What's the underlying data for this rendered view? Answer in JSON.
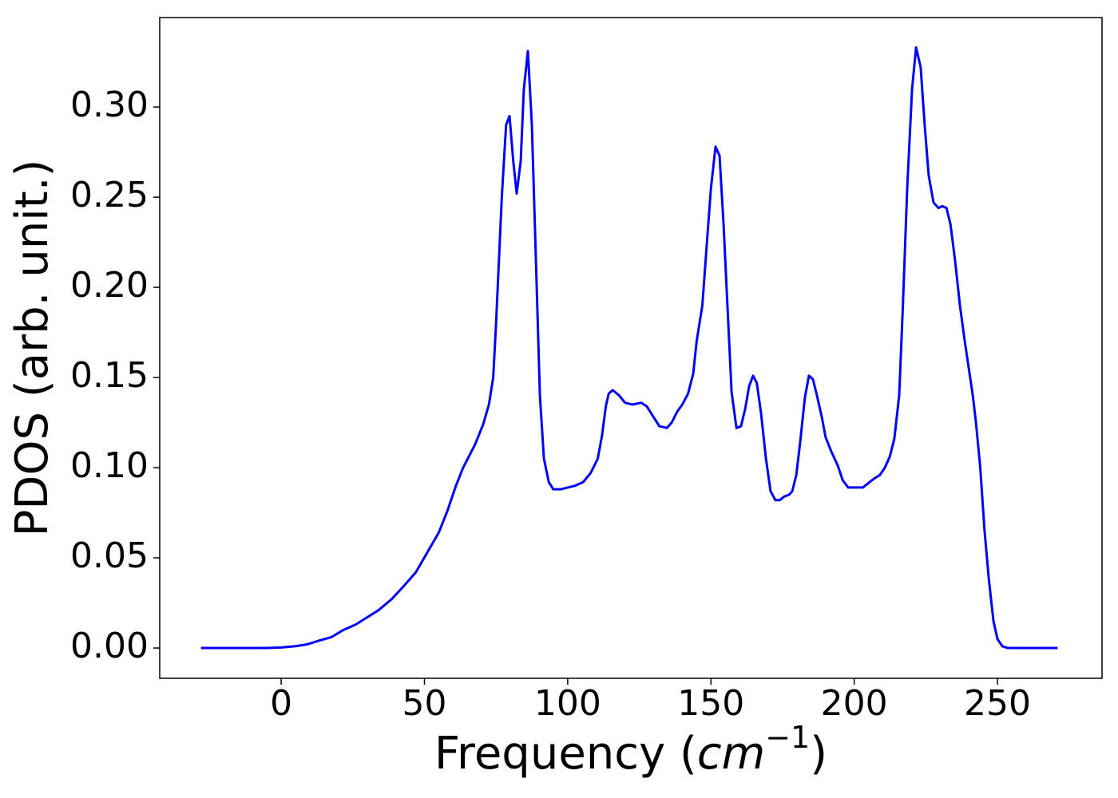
{
  "chart_data": {
    "type": "line",
    "ylabel": "PDOS (arb. unit.)",
    "xlabel": {
      "text": "Frequency (",
      "math": "cm",
      "sup": "−1",
      "close": ")"
    },
    "xlim": [
      -42.4,
      286.5
    ],
    "ylim": [
      -0.0168,
      0.3496
    ],
    "xticks": [
      0,
      50,
      100,
      150,
      200,
      250
    ],
    "yticks": [
      {
        "value": 0,
        "label": "0.00"
      },
      {
        "value": 0.05,
        "label": "0.05"
      },
      {
        "value": 0.1,
        "label": "0.10"
      },
      {
        "value": 0.15,
        "label": "0.15"
      },
      {
        "value": 0.2,
        "label": "0.20"
      },
      {
        "value": 0.25,
        "label": "0.25"
      },
      {
        "value": 0.3,
        "label": "0.30"
      }
    ],
    "grid": false,
    "series": [
      {
        "color": "#0000ff",
        "x": [
          -28,
          -20,
          -10,
          -5,
          0,
          5,
          9,
          13,
          17.5,
          21.7,
          26,
          30,
          34,
          38.5,
          42.6,
          47,
          51,
          55,
          58,
          61,
          63.5,
          67.7,
          70.5,
          72.5,
          74,
          75,
          77,
          78.5,
          79.7,
          81,
          82.2,
          83.6,
          84.7,
          86.1,
          87.5,
          89,
          90.3,
          91.7,
          93.4,
          95,
          97.5,
          100,
          102.6,
          105.4,
          108,
          110.5,
          112,
          113.3,
          114.3,
          115.7,
          118,
          120,
          122.6,
          125.7,
          127.6,
          130,
          132,
          134.6,
          136.3,
          138.2,
          140,
          142,
          143.8,
          145,
          147,
          148.6,
          150,
          151.6,
          153,
          154.4,
          157.2,
          158.9,
          160.5,
          162,
          163.3,
          164.7,
          166,
          167.5,
          169.2,
          170.8,
          172.5,
          174,
          175.6,
          177.3,
          178.4,
          179.8,
          181.2,
          182.8,
          184.2,
          185.6,
          187,
          188.7,
          190,
          192,
          194.3,
          196,
          197.9,
          200.4,
          203,
          207,
          209,
          210.7,
          212.4,
          214,
          215.7,
          217,
          218.5,
          220.2,
          221.6,
          223.2,
          224.6,
          226,
          227.7,
          229.4,
          230.8,
          232.2,
          233.6,
          235.2,
          236.9,
          238.6,
          240,
          241.4,
          242.5,
          244,
          245.5,
          247,
          248.6,
          250,
          251.7,
          253.6,
          260,
          271
        ],
        "values": [
          0,
          0,
          0,
          0,
          0.0003,
          0.001,
          0.002,
          0.004,
          0.006,
          0.01,
          0.013,
          0.017,
          0.021,
          0.027,
          0.034,
          0.042,
          0.053,
          0.064,
          0.076,
          0.09,
          0.1,
          0.113,
          0.124,
          0.135,
          0.15,
          0.18,
          0.25,
          0.29,
          0.295,
          0.27,
          0.252,
          0.27,
          0.31,
          0.331,
          0.29,
          0.21,
          0.14,
          0.105,
          0.092,
          0.088,
          0.088,
          0.089,
          0.09,
          0.092,
          0.097,
          0.105,
          0.118,
          0.134,
          0.141,
          0.143,
          0.14,
          0.136,
          0.135,
          0.136,
          0.134,
          0.128,
          0.123,
          0.122,
          0.125,
          0.131,
          0.135,
          0.141,
          0.152,
          0.17,
          0.19,
          0.225,
          0.255,
          0.278,
          0.273,
          0.235,
          0.142,
          0.122,
          0.123,
          0.133,
          0.145,
          0.151,
          0.147,
          0.13,
          0.105,
          0.087,
          0.082,
          0.082,
          0.084,
          0.085,
          0.087,
          0.096,
          0.115,
          0.139,
          0.151,
          0.149,
          0.14,
          0.128,
          0.117,
          0.109,
          0.101,
          0.093,
          0.089,
          0.089,
          0.089,
          0.094,
          0.096,
          0.1,
          0.106,
          0.116,
          0.14,
          0.19,
          0.255,
          0.31,
          0.333,
          0.322,
          0.29,
          0.262,
          0.247,
          0.244,
          0.245,
          0.244,
          0.235,
          0.215,
          0.19,
          0.17,
          0.155,
          0.14,
          0.125,
          0.1,
          0.065,
          0.038,
          0.015,
          0.005,
          0.001,
          0,
          0,
          0
        ]
      }
    ]
  }
}
